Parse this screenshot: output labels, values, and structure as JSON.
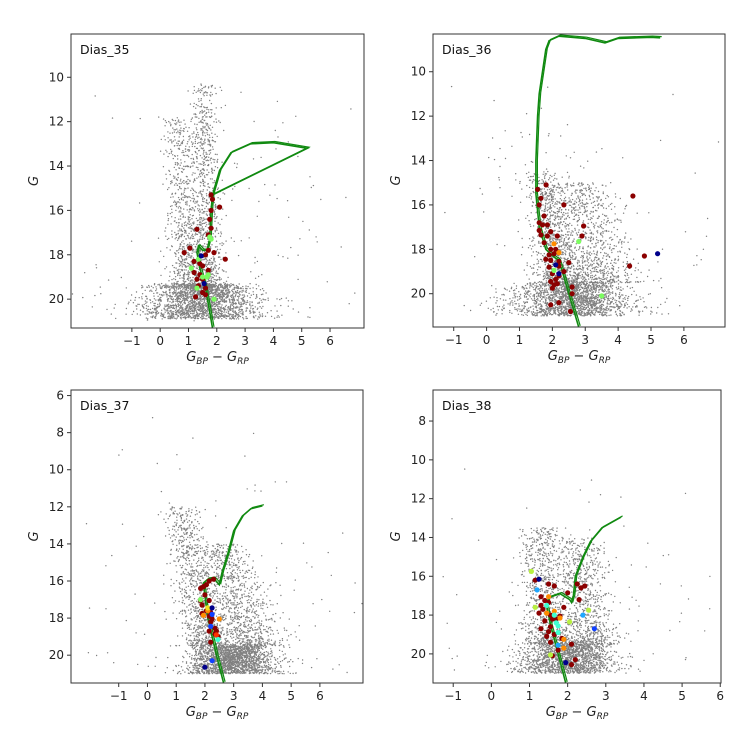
{
  "colors": {
    "field": "#808080",
    "isochrone": "#108a10",
    "darkred": "#8b0000",
    "orange": "#ff8c00",
    "lightgreen": "#7cfc60",
    "yellowgreen": "#b8f040",
    "yellow": "#f0e020",
    "navy": "#00008b",
    "blue": "#1040ff",
    "skyblue": "#20a8ff",
    "cyan": "#40ffd0",
    "red": "#ff3000"
  },
  "chart_data": [
    {
      "type": "scatter",
      "title": "Dias_35",
      "xlabel": "G_{BP} − G_{RP}",
      "ylabel": "G",
      "xlim": [
        -3.15,
        7.2
      ],
      "ylim": [
        21.3,
        8.05
      ],
      "y_inverted": true,
      "xticks": [
        -1,
        0,
        1,
        2,
        3,
        4,
        5,
        6
      ],
      "yticks": [
        10,
        12,
        14,
        16,
        18,
        20
      ],
      "grid": false,
      "isochrone": [
        [
          1.85,
          21.3
        ],
        [
          1.6,
          19.5
        ],
        [
          1.4,
          18.6
        ],
        [
          1.3,
          17.9
        ],
        [
          1.35,
          17.6
        ],
        [
          1.5,
          17.8
        ],
        [
          1.65,
          17.8
        ],
        [
          1.75,
          17.3
        ],
        [
          1.8,
          16.0
        ],
        [
          1.85,
          15.3
        ],
        [
          2.1,
          14.2
        ],
        [
          2.5,
          13.4
        ],
        [
          3.2,
          13.0
        ],
        [
          4.0,
          12.95
        ],
        [
          5.2,
          13.2
        ],
        [
          1.85,
          15.3
        ]
      ],
      "members": [
        {
          "color": "darkred",
          "points": [
            [
              1.8,
              15.3
            ],
            [
              1.85,
              15.5
            ],
            [
              2.1,
              15.85
            ],
            [
              1.8,
              16.0
            ],
            [
              1.75,
              16.4
            ],
            [
              1.3,
              16.85
            ],
            [
              1.8,
              16.8
            ],
            [
              1.7,
              17.1
            ],
            [
              1.9,
              17.9
            ],
            [
              1.05,
              17.7
            ],
            [
              0.85,
              17.9
            ],
            [
              1.6,
              18.0
            ],
            [
              1.7,
              17.8
            ],
            [
              2.3,
              18.2
            ],
            [
              1.4,
              18.4
            ],
            [
              1.5,
              18.5
            ],
            [
              1.2,
              18.8
            ],
            [
              1.4,
              18.9
            ],
            [
              1.7,
              18.7
            ],
            [
              1.3,
              19.1
            ],
            [
              1.5,
              19.1
            ],
            [
              1.35,
              19.4
            ],
            [
              1.6,
              19.5
            ],
            [
              1.5,
              19.7
            ],
            [
              1.25,
              19.9
            ],
            [
              1.6,
              19.8
            ],
            [
              1.2,
              18.3
            ]
          ]
        },
        {
          "color": "lightgreen",
          "points": [
            [
              1.75,
              17.2
            ],
            [
              1.8,
              17.3
            ],
            [
              1.35,
              18.2
            ],
            [
              1.1,
              18.6
            ],
            [
              1.5,
              19.0
            ],
            [
              1.65,
              19.0
            ],
            [
              1.3,
              19.5
            ],
            [
              1.9,
              20.0
            ],
            [
              1.7,
              18.9
            ]
          ]
        },
        {
          "color": "navy",
          "points": [
            [
              1.55,
              19.3
            ],
            [
              1.45,
              18.05
            ]
          ]
        }
      ]
    },
    {
      "type": "scatter",
      "title": "Dias_36",
      "xlabel": "G_{BP} − G_{RP}",
      "ylabel": "G",
      "xlim": [
        -1.63,
        7.25
      ],
      "ylim": [
        21.5,
        8.3
      ],
      "y_inverted": true,
      "xticks": [
        -1,
        0,
        1,
        2,
        3,
        4,
        5,
        6
      ],
      "yticks": [
        10,
        12,
        14,
        16,
        18,
        20
      ],
      "grid": false,
      "isochrone": [
        [
          2.8,
          21.5
        ],
        [
          2.5,
          20.0
        ],
        [
          2.2,
          18.5
        ],
        [
          2.05,
          18.35
        ],
        [
          1.8,
          18.0
        ],
        [
          1.6,
          17.0
        ],
        [
          1.5,
          15.5
        ],
        [
          1.5,
          14.0
        ],
        [
          1.55,
          12.0
        ],
        [
          1.6,
          11.0
        ],
        [
          1.8,
          9.0
        ],
        [
          1.9,
          8.6
        ],
        [
          2.2,
          8.4
        ],
        [
          3.0,
          8.5
        ],
        [
          3.6,
          8.7
        ],
        [
          4.0,
          8.5
        ],
        [
          5.0,
          8.45
        ],
        [
          5.28,
          8.47
        ]
      ],
      "members": [
        {
          "color": "darkred",
          "points": [
            [
              1.55,
              15.3
            ],
            [
              1.81,
              15.1
            ],
            [
              1.65,
              15.7
            ],
            [
              1.6,
              16.0
            ],
            [
              2.35,
              16.0
            ],
            [
              1.75,
              16.5
            ],
            [
              1.6,
              16.8
            ],
            [
              1.7,
              16.9
            ],
            [
              1.85,
              16.9
            ],
            [
              2.95,
              16.95
            ],
            [
              1.6,
              17.15
            ],
            [
              1.95,
              17.2
            ],
            [
              1.65,
              17.35
            ],
            [
              1.85,
              17.4
            ],
            [
              2.15,
              17.4
            ],
            [
              2.9,
              17.4
            ],
            [
              1.75,
              17.7
            ],
            [
              1.95,
              18.0
            ],
            [
              2.1,
              18.0
            ],
            [
              2.05,
              18.2
            ],
            [
              1.9,
              18.25
            ],
            [
              1.8,
              18.45
            ],
            [
              1.95,
              18.5
            ],
            [
              2.2,
              18.55
            ],
            [
              2.5,
              18.6
            ],
            [
              1.9,
              18.8
            ],
            [
              2.2,
              18.75
            ],
            [
              2.35,
              19.0
            ],
            [
              2.0,
              19.1
            ],
            [
              2.2,
              19.2
            ],
            [
              1.95,
              19.45
            ],
            [
              2.1,
              19.35
            ],
            [
              2.15,
              19.55
            ],
            [
              2.05,
              19.6
            ],
            [
              2.6,
              19.7
            ],
            [
              2.0,
              19.75
            ],
            [
              2.6,
              20.0
            ],
            [
              2.2,
              20.4
            ],
            [
              1.95,
              20.5
            ],
            [
              2.55,
              20.8
            ],
            [
              4.45,
              15.6
            ],
            [
              4.8,
              18.3
            ],
            [
              4.35,
              18.75
            ]
          ]
        },
        {
          "color": "orange",
          "points": [
            [
              2.05,
              17.75
            ],
            [
              2.2,
              18.15
            ]
          ]
        },
        {
          "color": "navy",
          "points": [
            [
              2.1,
              18.7
            ],
            [
              2.2,
              19.1
            ],
            [
              5.2,
              18.2
            ]
          ]
        },
        {
          "color": "lightgreen",
          "points": [
            [
              2.8,
              17.65
            ],
            [
              2.05,
              18.95
            ],
            [
              3.5,
              20.1
            ]
          ]
        }
      ]
    },
    {
      "type": "scatter",
      "title": "Dias_37",
      "xlabel": "G_{BP} − G_{RP}",
      "ylabel": "G",
      "xlim": [
        -2.66,
        7.5
      ],
      "ylim": [
        21.5,
        5.7
      ],
      "y_inverted": true,
      "xticks": [
        -1,
        0,
        1,
        2,
        3,
        4,
        5,
        6
      ],
      "yticks": [
        6,
        8,
        10,
        12,
        14,
        16,
        18,
        20
      ],
      "grid": false,
      "isochrone": [
        [
          2.65,
          21.5
        ],
        [
          2.4,
          20.0
        ],
        [
          2.1,
          18.0
        ],
        [
          2.0,
          16.8
        ],
        [
          1.95,
          16.1
        ],
        [
          2.1,
          15.9
        ],
        [
          2.3,
          15.85
        ],
        [
          2.5,
          16.2
        ],
        [
          2.6,
          15.5
        ],
        [
          2.8,
          14.5
        ],
        [
          3.0,
          13.3
        ],
        [
          3.3,
          12.5
        ],
        [
          3.6,
          12.1
        ],
        [
          4.0,
          11.95
        ]
      ],
      "members": [
        {
          "color": "darkred",
          "points": [
            [
              2.3,
              15.9
            ],
            [
              2.15,
              16.0
            ],
            [
              2.05,
              16.2
            ],
            [
              1.95,
              16.3
            ],
            [
              1.85,
              16.4
            ],
            [
              2.0,
              16.75
            ],
            [
              1.85,
              17.05
            ],
            [
              1.9,
              17.3
            ],
            [
              2.15,
              17.05
            ],
            [
              2.2,
              17.7
            ],
            [
              1.9,
              17.75
            ],
            [
              2.15,
              17.9
            ],
            [
              2.25,
              18.05
            ],
            [
              2.2,
              18.2
            ],
            [
              2.35,
              18.55
            ],
            [
              2.4,
              18.7
            ],
            [
              2.15,
              18.7
            ],
            [
              2.45,
              19.0
            ],
            [
              2.2,
              19.3
            ],
            [
              2.05,
              17.6
            ],
            [
              2.35,
              18.85
            ]
          ]
        },
        {
          "color": "orange",
          "points": [
            [
              1.95,
              17.85
            ],
            [
              2.5,
              18.05
            ],
            [
              2.1,
              17.6
            ]
          ]
        },
        {
          "color": "yellow",
          "points": [
            [
              2.1,
              17.45
            ]
          ]
        },
        {
          "color": "lightgreen",
          "points": [
            [
              1.85,
              17.0
            ]
          ]
        },
        {
          "color": "navy",
          "points": [
            [
              2.25,
              17.45
            ],
            [
              2.0,
              20.65
            ]
          ]
        },
        {
          "color": "blue",
          "points": [
            [
              2.25,
              17.8
            ],
            [
              2.2,
              18.45
            ],
            [
              2.25,
              20.3
            ]
          ]
        },
        {
          "color": "cyan",
          "points": [
            [
              2.45,
              19.15
            ]
          ]
        },
        {
          "color": "red",
          "points": [
            [
              2.4,
              18.9
            ]
          ]
        }
      ]
    },
    {
      "type": "scatter",
      "title": "Dias_38",
      "xlabel": "G_{BP} − G_{RP}",
      "ylabel": "G",
      "xlim": [
        -1.53,
        6.02
      ],
      "ylim": [
        21.5,
        6.4
      ],
      "y_inverted": true,
      "xticks": [
        -1,
        0,
        1,
        2,
        3,
        4,
        5,
        6
      ],
      "yticks": [
        8,
        10,
        12,
        14,
        16,
        18,
        20
      ],
      "grid": false,
      "isochrone": [
        [
          1.95,
          21.5
        ],
        [
          1.75,
          20.0
        ],
        [
          1.55,
          18.5
        ],
        [
          1.45,
          17.5
        ],
        [
          1.5,
          17.1
        ],
        [
          1.8,
          16.9
        ],
        [
          2.05,
          17.2
        ],
        [
          2.1,
          17.35
        ],
        [
          2.15,
          17.0
        ],
        [
          2.2,
          16.0
        ],
        [
          2.4,
          15.0
        ],
        [
          2.6,
          14.2
        ],
        [
          2.9,
          13.5
        ],
        [
          3.4,
          12.95
        ]
      ],
      "members": [
        {
          "color": "darkred",
          "points": [
            [
              1.15,
              16.2
            ],
            [
              1.5,
              16.4
            ],
            [
              1.65,
              16.5
            ],
            [
              2.25,
              16.4
            ],
            [
              2.35,
              16.6
            ],
            [
              2.45,
              16.5
            ],
            [
              1.3,
              17.05
            ],
            [
              1.4,
              17.25
            ],
            [
              1.5,
              17.35
            ],
            [
              1.3,
              17.5
            ],
            [
              1.35,
              17.7
            ],
            [
              1.25,
              17.9
            ],
            [
              1.55,
              18.0
            ],
            [
              1.6,
              18.2
            ],
            [
              1.7,
              18.2
            ],
            [
              1.4,
              18.3
            ],
            [
              1.55,
              18.6
            ],
            [
              1.3,
              18.7
            ],
            [
              1.5,
              18.85
            ],
            [
              1.45,
              19.1
            ],
            [
              1.65,
              19.0
            ],
            [
              1.85,
              19.2
            ],
            [
              1.55,
              19.4
            ],
            [
              1.75,
              19.8
            ],
            [
              1.6,
              20.1
            ],
            [
              2.1,
              19.5
            ],
            [
              2.2,
              20.3
            ],
            [
              2.1,
              20.55
            ],
            [
              2.0,
              16.85
            ],
            [
              2.3,
              17.2
            ],
            [
              1.9,
              17.6
            ],
            [
              1.8,
              18.05
            ]
          ]
        },
        {
          "color": "orange",
          "points": [
            [
              1.5,
              17.05
            ],
            [
              1.65,
              17.8
            ],
            [
              1.8,
              18.15
            ],
            [
              1.9,
              19.25
            ],
            [
              1.9,
              19.7
            ],
            [
              1.45,
              17.9
            ]
          ]
        },
        {
          "color": "yellowgreen",
          "points": [
            [
              1.05,
              15.75
            ],
            [
              1.15,
              17.6
            ],
            [
              2.05,
              18.35
            ],
            [
              2.55,
              17.75
            ],
            [
              1.55,
              20.05
            ]
          ]
        },
        {
          "color": "navy",
          "points": [
            [
              1.25,
              16.15
            ],
            [
              1.95,
              20.45
            ]
          ]
        },
        {
          "color": "skyblue",
          "points": [
            [
              1.2,
              16.7
            ],
            [
              2.4,
              18.0
            ],
            [
              1.75,
              19.55
            ]
          ]
        },
        {
          "color": "blue",
          "points": [
            [
              2.7,
              18.7
            ]
          ]
        },
        {
          "color": "cyan",
          "points": [
            [
              1.45,
              17.5
            ],
            [
              1.65,
              18.0
            ],
            [
              1.75,
              18.55
            ],
            [
              1.75,
              18.9
            ],
            [
              1.7,
              18.4
            ]
          ]
        }
      ]
    }
  ]
}
